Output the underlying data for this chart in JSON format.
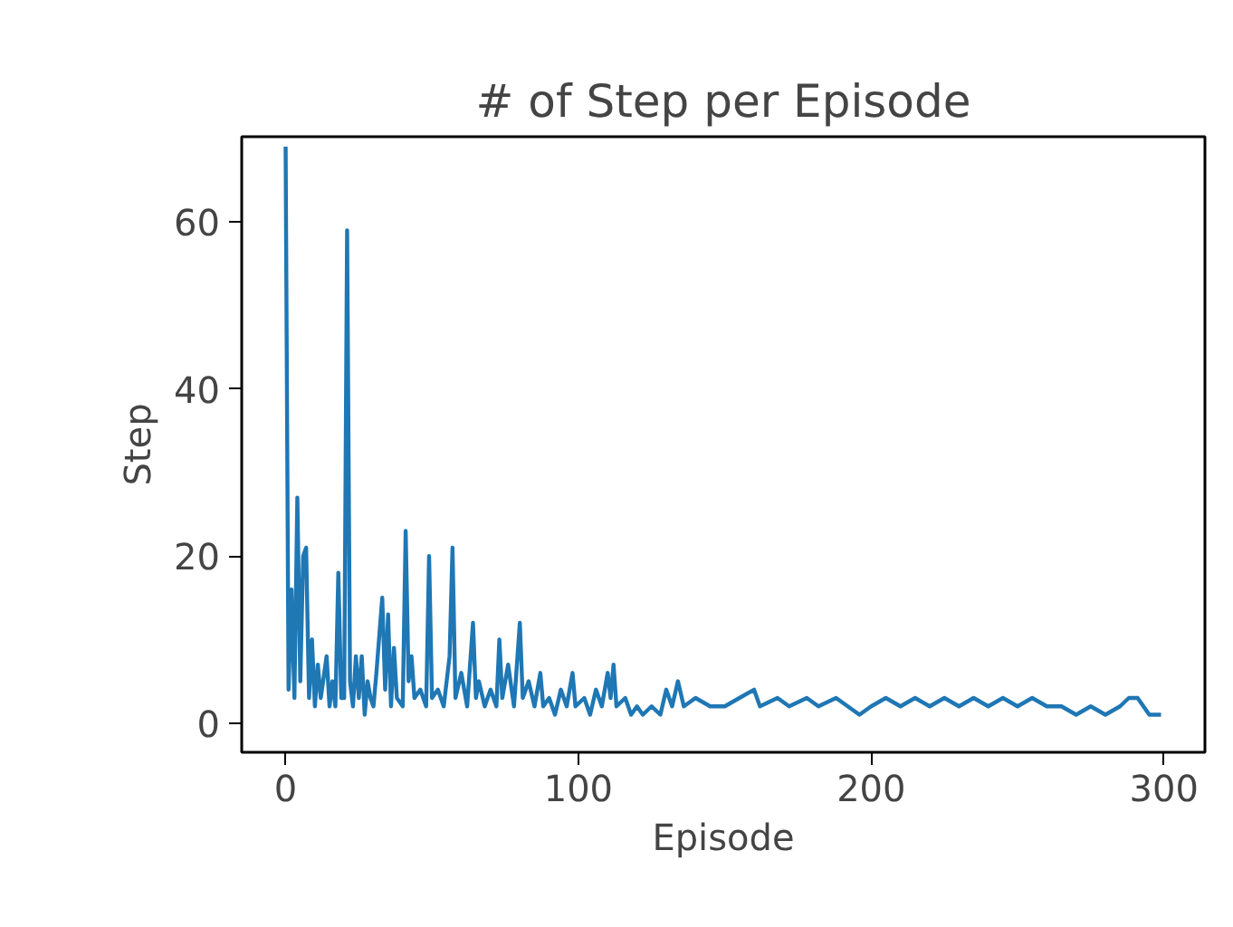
{
  "chart_data": {
    "type": "line",
    "title": "# of Step per Episode",
    "xlabel": "Episode",
    "ylabel": "Step",
    "xlim": [
      -15,
      314
    ],
    "ylim": [
      -3.5,
      70.2
    ],
    "xticks": [
      0,
      100,
      200,
      300
    ],
    "yticks": [
      0,
      20,
      40,
      60
    ],
    "grid": false,
    "marker": "none",
    "line_style": "solid",
    "series": [
      {
        "color": "#1f77b4",
        "x": [
          0,
          1,
          2,
          3,
          4,
          5,
          6,
          7,
          8,
          9,
          10,
          11,
          12,
          14,
          15,
          16,
          17,
          18,
          19,
          20,
          21,
          22,
          23,
          24,
          25,
          26,
          27,
          28,
          29,
          30,
          31,
          33,
          34,
          35,
          36,
          37,
          38,
          40,
          41,
          42,
          43,
          44,
          46,
          48,
          49,
          50,
          52,
          54,
          56,
          57,
          58,
          60,
          62,
          64,
          65,
          66,
          68,
          70,
          72,
          73,
          74,
          76,
          78,
          80,
          81,
          83,
          85,
          87,
          88,
          90,
          92,
          94,
          96,
          98,
          99,
          102,
          104,
          106,
          108,
          110,
          111,
          112,
          113,
          116,
          118,
          120,
          122,
          125,
          128,
          130,
          132,
          134,
          136,
          140,
          145,
          150,
          155,
          160,
          162,
          168,
          172,
          178,
          182,
          188,
          192,
          196,
          200,
          205,
          210,
          215,
          220,
          225,
          230,
          235,
          240,
          245,
          250,
          255,
          260,
          265,
          270,
          275,
          280,
          285,
          288,
          291,
          293,
          295,
          297,
          299
        ],
        "values": [
          69,
          4,
          16,
          3,
          27,
          5,
          20,
          21,
          3,
          10,
          2,
          7,
          3,
          8,
          2,
          5,
          2,
          18,
          3,
          3,
          59,
          5,
          2,
          8,
          3,
          8,
          1,
          5,
          3,
          2,
          6,
          15,
          4,
          13,
          2,
          9,
          3,
          2,
          23,
          5,
          8,
          3,
          4,
          2,
          20,
          3,
          4,
          2,
          8,
          21,
          3,
          6,
          2,
          12,
          3,
          5,
          2,
          4,
          2,
          10,
          3,
          7,
          2,
          12,
          3,
          5,
          2,
          6,
          2,
          3,
          1,
          4,
          2,
          6,
          2,
          3,
          1,
          4,
          2,
          6,
          3,
          7,
          2,
          3,
          1,
          2,
          1,
          2,
          1,
          4,
          2,
          5,
          2,
          3,
          2,
          2,
          3,
          4,
          2,
          3,
          2,
          3,
          2,
          3,
          2,
          1,
          2,
          3,
          2,
          3,
          2,
          3,
          2,
          3,
          2,
          3,
          2,
          3,
          2,
          2,
          1,
          2,
          1,
          2,
          3,
          3,
          2,
          1,
          1,
          1
        ]
      }
    ]
  }
}
